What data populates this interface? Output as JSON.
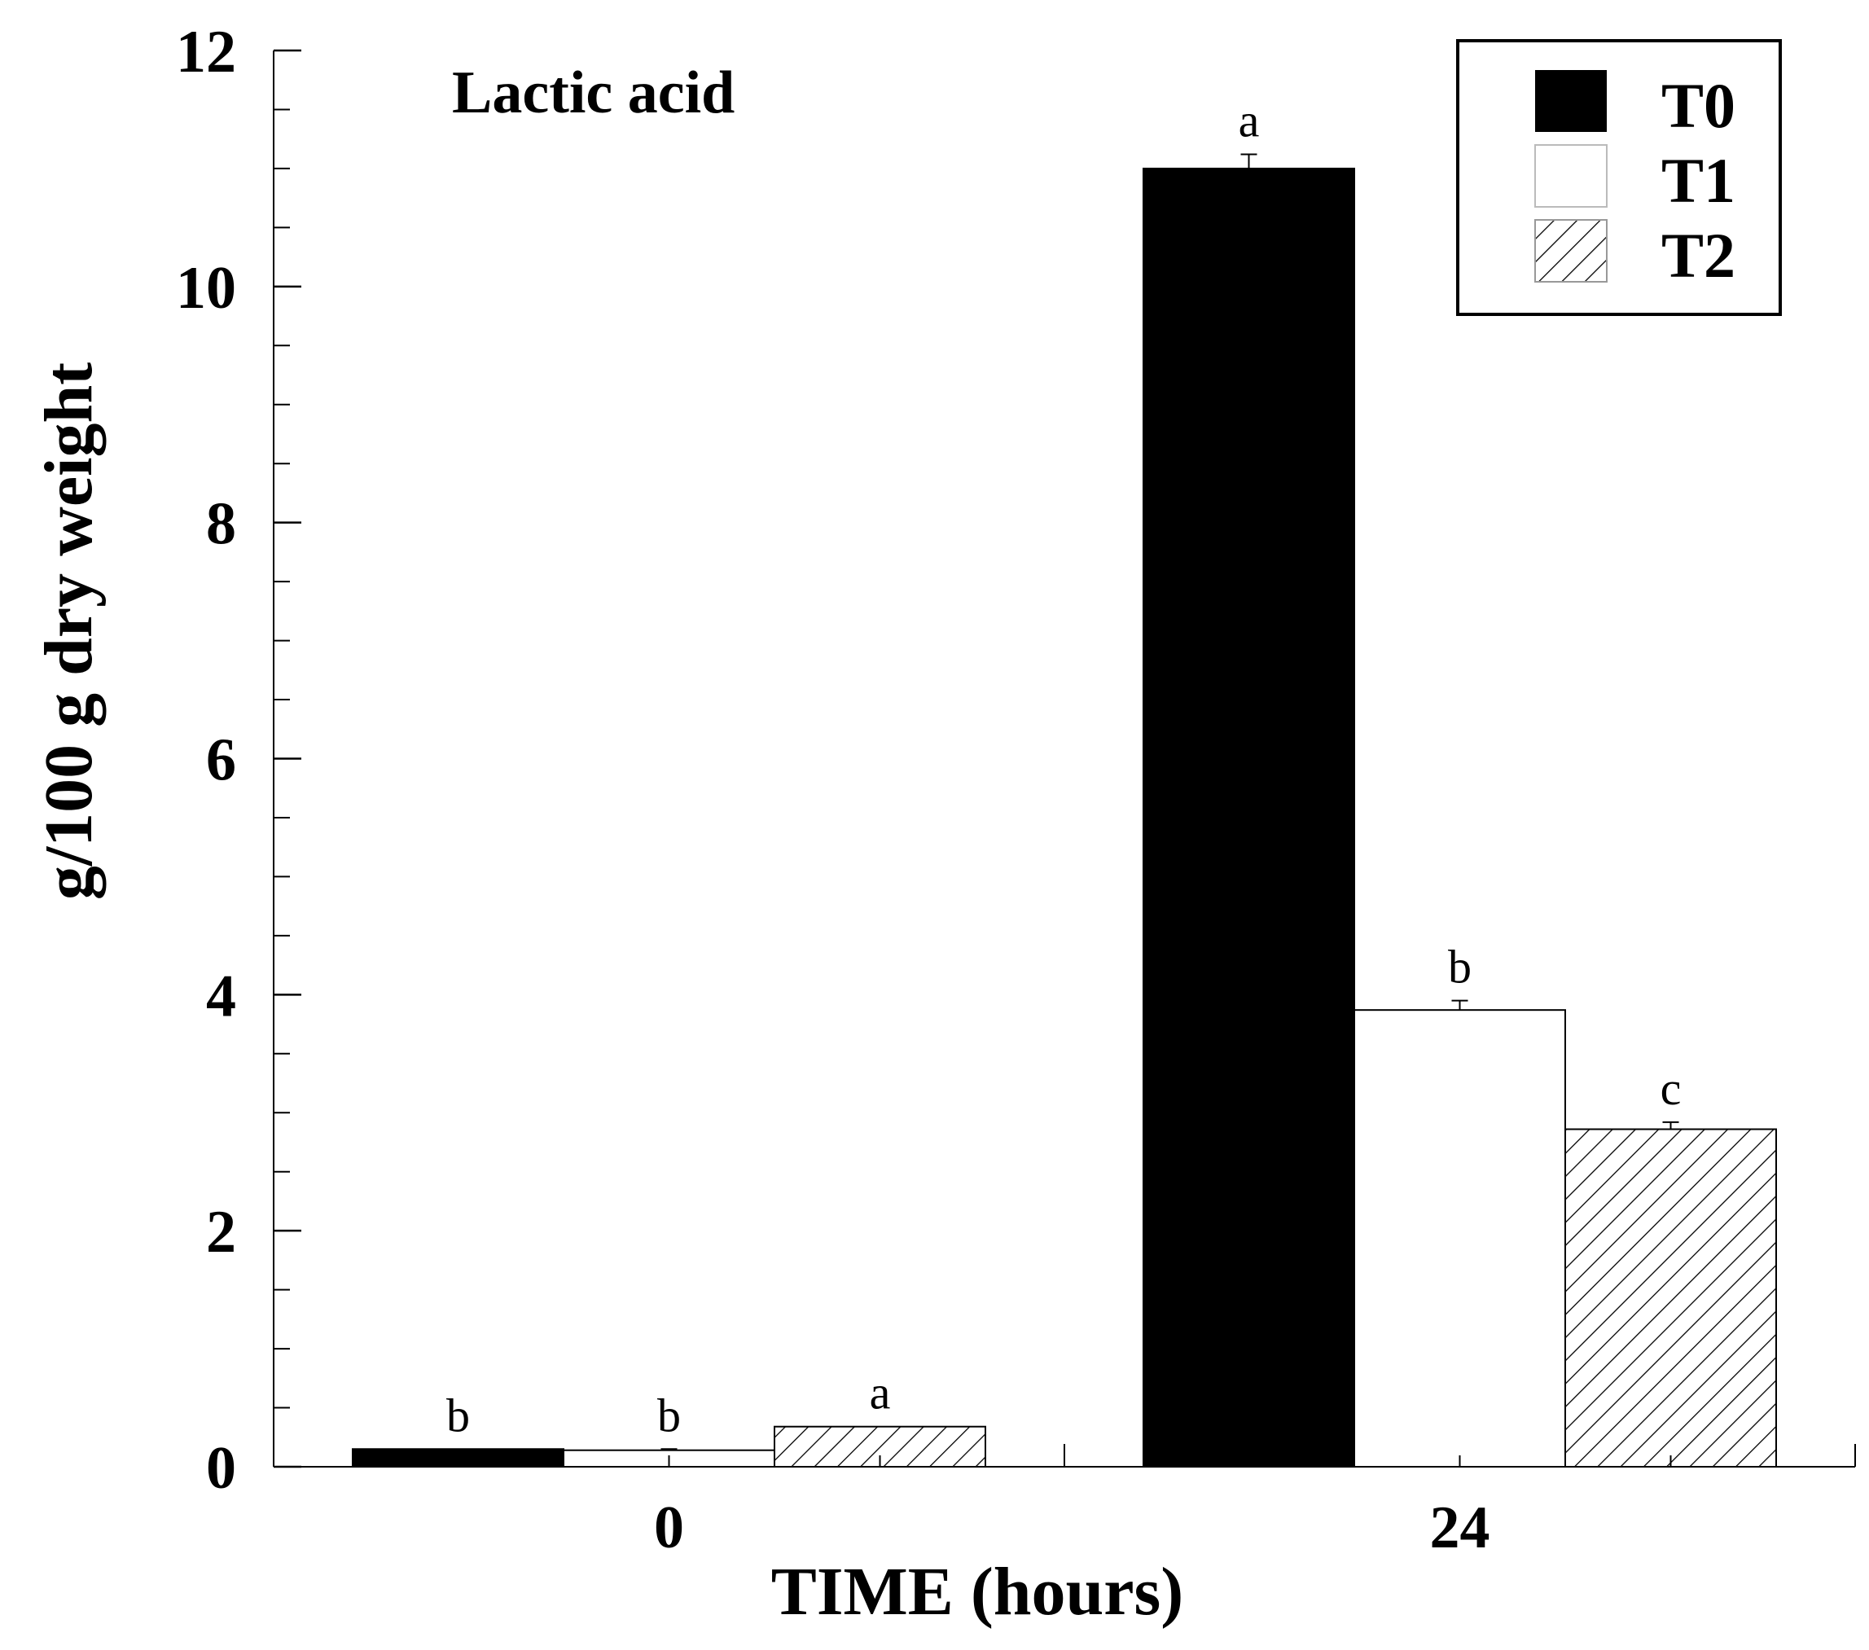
{
  "chart_data": {
    "type": "bar",
    "title": "Lactic acid",
    "xlabel": "TIME (hours)",
    "ylabel": "g/100 g dry weight",
    "categories": [
      "0",
      "24"
    ],
    "ylim": [
      0,
      12
    ],
    "yticks": [
      0,
      2,
      4,
      6,
      8,
      10,
      12
    ],
    "y_minor_step": 0.5,
    "legend_position": "top-right",
    "grid": false,
    "series": [
      {
        "name": "T0",
        "fill": "#000000",
        "pattern": "solid",
        "values": [
          0.15,
          11.0
        ],
        "errors": [
          0.0,
          0.12
        ],
        "labels": [
          "b",
          "a"
        ]
      },
      {
        "name": "T1",
        "fill": "#ffffff",
        "pattern": "none",
        "values": [
          0.14,
          3.87
        ],
        "errors": [
          0.01,
          0.08
        ],
        "labels": [
          "b",
          "b"
        ]
      },
      {
        "name": "T2",
        "fill": "#ffffff",
        "pattern": "diagonal-hatch",
        "values": [
          0.34,
          2.86
        ],
        "errors": [
          0.0,
          0.06
        ],
        "labels": [
          "a",
          "c"
        ]
      }
    ]
  }
}
